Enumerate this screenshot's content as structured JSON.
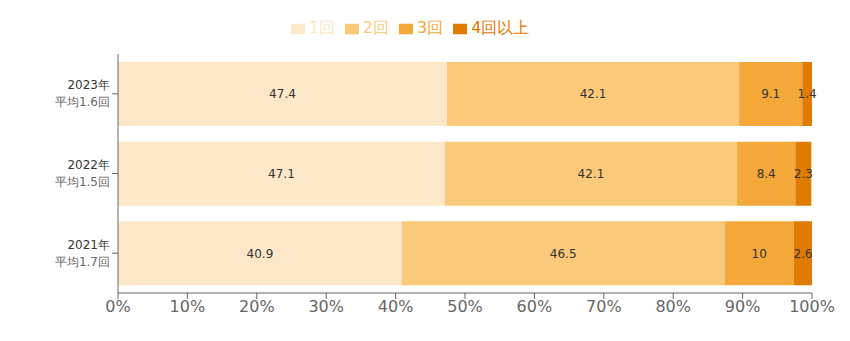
{
  "chart_data": {
    "type": "bar",
    "orientation": "horizontal",
    "stacked": true,
    "data_labels": true,
    "grid": false,
    "legend": "top",
    "categories": [
      "2023年",
      "2022年",
      "2021年"
    ],
    "category_notes": [
      "平均1.6回",
      "平均1.5回",
      "平均1.7回"
    ],
    "series": [
      {
        "name": "1回",
        "color": "#fce8c8",
        "values": [
          47.4,
          47.1,
          40.9
        ]
      },
      {
        "name": "2回",
        "color": "#fbc97a",
        "values": [
          42.1,
          42.1,
          46.5
        ]
      },
      {
        "name": "3回",
        "color": "#f5a83a",
        "values": [
          9.1,
          8.4,
          10.0
        ]
      },
      {
        "name": "4回以上",
        "color": "#e07b00",
        "values": [
          1.4,
          2.3,
          2.6
        ]
      }
    ],
    "xlim": [
      0,
      100
    ],
    "xticks": [
      {
        "value": 0,
        "label": "0%"
      },
      {
        "value": 10,
        "label": "10%"
      },
      {
        "value": 20,
        "label": "20%"
      },
      {
        "value": 30,
        "label": "30%"
      },
      {
        "value": 40,
        "label": "40%"
      },
      {
        "value": 50,
        "label": "50%"
      },
      {
        "value": 60,
        "label": "60%"
      },
      {
        "value": 70,
        "label": "70%"
      },
      {
        "value": 80,
        "label": "80%"
      },
      {
        "value": 90,
        "label": "90%"
      },
      {
        "value": 100,
        "label": "100%"
      }
    ]
  }
}
